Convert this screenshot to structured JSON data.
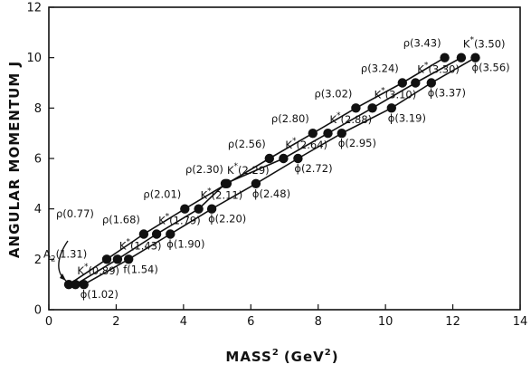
{
  "chart_data": {
    "type": "scatter",
    "xlabel": "MASS",
    "xlabel_sup": "2",
    "xlabel_unit": "(GeV",
    "xlabel_unit_sup": "2",
    "xlabel_unit_close": ")",
    "ylabel": "ANGULAR  MOMENTUM  J",
    "xlim": [
      0,
      14
    ],
    "ylim": [
      0,
      12
    ],
    "xticks": [
      "0",
      "2",
      "4",
      "6",
      "8",
      "10",
      "12",
      "14"
    ],
    "yticks": [
      "0",
      "2",
      "4",
      "6",
      "8",
      "10",
      "12"
    ],
    "grid": false,
    "marker_color": "#111111",
    "series": [
      {
        "points": [
          {
            "x": 0.59,
            "y": 1,
            "label": "ρ(0.77)"
          },
          {
            "x": 1.72,
            "y": 2,
            "label": "A",
            "label_sub": "2",
            "label_tail": "(1.31)"
          },
          {
            "x": 2.82,
            "y": 3,
            "label": "ρ(1.68)"
          },
          {
            "x": 4.04,
            "y": 4,
            "label": "ρ(2.01)"
          },
          {
            "x": 5.29,
            "y": 5,
            "label": "ρ(2.30)"
          },
          {
            "x": 6.55,
            "y": 6,
            "label": "ρ(2.56)"
          },
          {
            "x": 7.84,
            "y": 7,
            "label": "ρ(2.80)"
          },
          {
            "x": 9.12,
            "y": 8,
            "label": "ρ(3.02)"
          },
          {
            "x": 10.5,
            "y": 9,
            "label": "ρ(3.24)"
          },
          {
            "x": 11.76,
            "y": 10,
            "label": "ρ(3.43)"
          }
        ]
      },
      {
        "points": [
          {
            "x": 0.79,
            "y": 1,
            "label": "K",
            "label_sup": "*",
            "label_tail": "(0.89)"
          },
          {
            "x": 2.04,
            "y": 2,
            "label": "K",
            "label_sup": "*",
            "label_tail": "(1.43)"
          },
          {
            "x": 3.2,
            "y": 3,
            "label": "K",
            "label_sup": "*",
            "label_tail": "(1.79)"
          },
          {
            "x": 4.45,
            "y": 4,
            "label": "K",
            "label_sup": "*",
            "label_tail": "(2.11)"
          },
          {
            "x": 5.24,
            "y": 5,
            "label": "K",
            "label_sup": "*",
            "label_tail": "(2.29)"
          },
          {
            "x": 6.97,
            "y": 6,
            "label": "K",
            "label_sup": "*",
            "label_tail": "(2.64)"
          },
          {
            "x": 8.29,
            "y": 7,
            "label": "K",
            "label_sup": "*",
            "label_tail": "(2.88)"
          },
          {
            "x": 9.61,
            "y": 8,
            "label": "K",
            "label_sup": "*",
            "label_tail": "(3.10)"
          },
          {
            "x": 10.89,
            "y": 9,
            "label": "K",
            "label_sup": "*",
            "label_tail": "(3.30)"
          },
          {
            "x": 12.25,
            "y": 10,
            "label": "K",
            "label_sup": "*",
            "label_tail": "(3.50)"
          }
        ]
      },
      {
        "points": [
          {
            "x": 1.04,
            "y": 1,
            "label": "ϕ(1.02)"
          },
          {
            "x": 2.37,
            "y": 2,
            "label": "f(1.54)"
          },
          {
            "x": 3.61,
            "y": 3,
            "label": "ϕ(1.90)"
          },
          {
            "x": 4.84,
            "y": 4,
            "label": "ϕ(2.20)"
          },
          {
            "x": 6.15,
            "y": 5,
            "label": "ϕ(2.48)"
          },
          {
            "x": 7.4,
            "y": 6,
            "label": "ϕ(2.72)"
          },
          {
            "x": 8.7,
            "y": 7,
            "label": "ϕ(2.95)"
          },
          {
            "x": 10.18,
            "y": 8,
            "label": "ϕ(3.19)"
          },
          {
            "x": 11.36,
            "y": 9,
            "label": "ϕ(3.37)"
          },
          {
            "x": 12.67,
            "y": 10,
            "label": "ϕ(3.56)"
          }
        ]
      }
    ]
  }
}
